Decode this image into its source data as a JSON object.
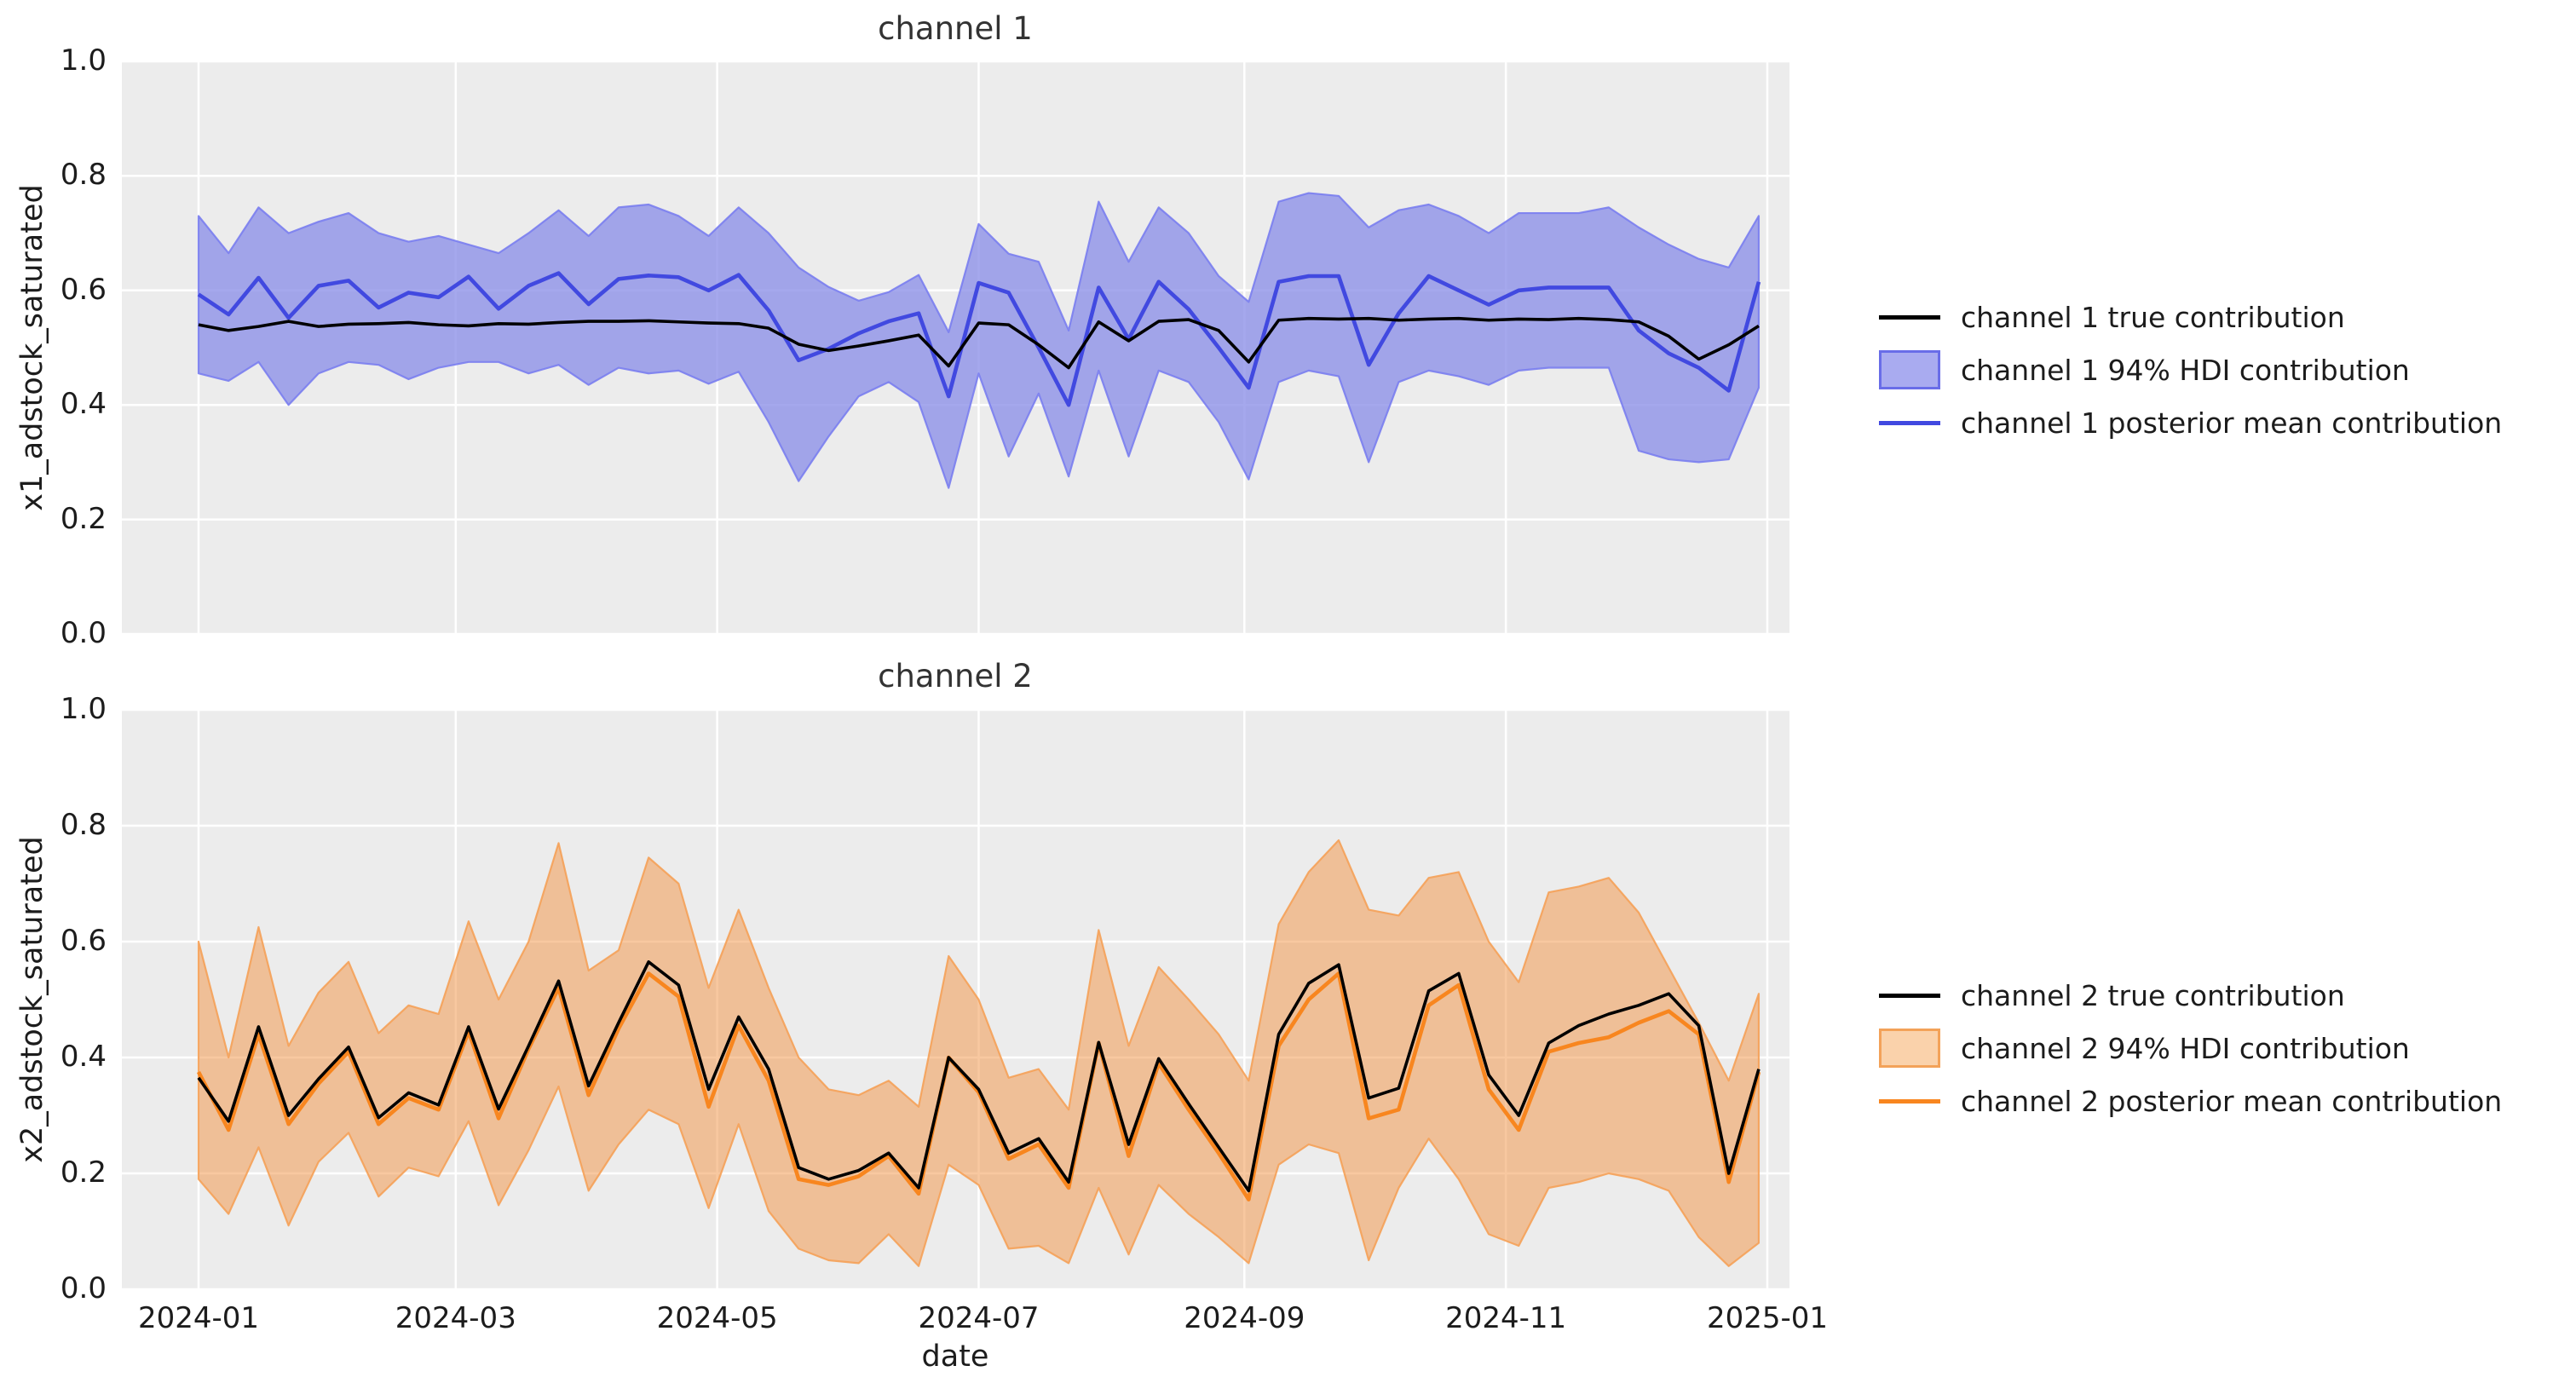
{
  "figure": {
    "axes_background": "#ececec",
    "grid_color": "#ffffff",
    "text_color": "#1c1c1c",
    "title_color": "#333333"
  },
  "chart_data": [
    {
      "type": "line",
      "title": "channel 1",
      "ylabel": "x1_adstock_saturated",
      "xlabel": "",
      "ylim": [
        0.0,
        1.0
      ],
      "grid": true,
      "yticks": [
        0.0,
        0.2,
        0.4,
        0.6,
        0.8,
        1.0
      ],
      "xticks": [
        "2024-01",
        "2024-03",
        "2024-05",
        "2024-07",
        "2024-09",
        "2024-11",
        "2025-01"
      ],
      "x": {
        "start_date": "2024-01-01",
        "step_days": 7,
        "n_points": 53
      },
      "legend_position": "right",
      "legend": [
        {
          "label": "channel 1 true contribution",
          "type": "line",
          "color": "#000000"
        },
        {
          "label": "channel 1 94% HDI contribution",
          "type": "patch",
          "fill": "#a9abf0",
          "edge": "#696de8"
        },
        {
          "label": "channel 1 posterior mean contribution",
          "type": "line",
          "color": "#4149e0"
        }
      ],
      "colors": {
        "true_line": "#000000",
        "mean_line": "#4149e0",
        "band_fill": "#8e92e8",
        "band_fill_opacity": 0.8,
        "band_edge": "#7a7eef"
      },
      "series": [
        {
          "name": "true",
          "values": [
            0.54,
            0.53,
            0.537,
            0.546,
            0.537,
            0.541,
            0.542,
            0.544,
            0.54,
            0.538,
            0.542,
            0.541,
            0.544,
            0.546,
            0.546,
            0.547,
            0.545,
            0.543,
            0.542,
            0.534,
            0.506,
            0.495,
            0.503,
            0.512,
            0.522,
            0.468,
            0.543,
            0.54,
            0.505,
            0.465,
            0.545,
            0.512,
            0.546,
            0.549,
            0.53,
            0.475,
            0.548,
            0.551,
            0.55,
            0.551,
            0.548,
            0.55,
            0.551,
            0.548,
            0.55,
            0.549,
            0.551,
            0.549,
            0.545,
            0.52,
            0.48,
            0.505,
            0.538
          ]
        },
        {
          "name": "posterior_mean",
          "values": [
            0.593,
            0.558,
            0.622,
            0.552,
            0.608,
            0.617,
            0.57,
            0.596,
            0.588,
            0.624,
            0.568,
            0.608,
            0.63,
            0.576,
            0.62,
            0.626,
            0.623,
            0.6,
            0.627,
            0.565,
            0.478,
            0.498,
            0.525,
            0.546,
            0.56,
            0.415,
            0.613,
            0.596,
            0.5,
            0.4,
            0.605,
            0.515,
            0.615,
            0.567,
            0.5,
            0.43,
            0.615,
            0.625,
            0.625,
            0.47,
            0.56,
            0.625,
            0.6,
            0.575,
            0.6,
            0.605,
            0.605,
            0.605,
            0.53,
            0.49,
            0.465,
            0.425,
            0.615
          ]
        },
        {
          "name": "hdi_lower",
          "values": [
            0.455,
            0.442,
            0.475,
            0.4,
            0.455,
            0.475,
            0.47,
            0.445,
            0.465,
            0.475,
            0.475,
            0.455,
            0.47,
            0.435,
            0.465,
            0.455,
            0.46,
            0.437,
            0.458,
            0.37,
            0.267,
            0.345,
            0.415,
            0.44,
            0.405,
            0.255,
            0.455,
            0.31,
            0.42,
            0.275,
            0.46,
            0.31,
            0.46,
            0.44,
            0.37,
            0.27,
            0.44,
            0.46,
            0.45,
            0.3,
            0.44,
            0.46,
            0.45,
            0.435,
            0.46,
            0.465,
            0.465,
            0.465,
            0.32,
            0.305,
            0.3,
            0.305,
            0.43
          ]
        },
        {
          "name": "hdi_upper",
          "values": [
            0.73,
            0.665,
            0.745,
            0.7,
            0.72,
            0.735,
            0.7,
            0.685,
            0.695,
            0.68,
            0.665,
            0.7,
            0.74,
            0.695,
            0.745,
            0.75,
            0.73,
            0.695,
            0.745,
            0.7,
            0.64,
            0.606,
            0.582,
            0.597,
            0.627,
            0.527,
            0.716,
            0.664,
            0.65,
            0.53,
            0.755,
            0.65,
            0.745,
            0.7,
            0.625,
            0.58,
            0.755,
            0.77,
            0.765,
            0.71,
            0.74,
            0.75,
            0.73,
            0.7,
            0.735,
            0.735,
            0.735,
            0.745,
            0.71,
            0.68,
            0.655,
            0.64,
            0.73
          ]
        }
      ]
    },
    {
      "type": "line",
      "title": "channel 2",
      "ylabel": "x2_adstock_saturated",
      "xlabel": "date",
      "ylim": [
        0.0,
        1.0
      ],
      "grid": true,
      "yticks": [
        0.0,
        0.2,
        0.4,
        0.6,
        0.8,
        1.0
      ],
      "xticks": [
        "2024-01",
        "2024-03",
        "2024-05",
        "2024-07",
        "2024-09",
        "2024-11",
        "2025-01"
      ],
      "x": {
        "start_date": "2024-01-01",
        "step_days": 7,
        "n_points": 53
      },
      "legend_position": "right",
      "legend": [
        {
          "label": "channel 2 true contribution",
          "type": "line",
          "color": "#000000"
        },
        {
          "label": "channel 2 94% HDI contribution",
          "type": "patch",
          "fill": "#fad2ab",
          "edge": "#f3a259"
        },
        {
          "label": "channel 2 posterior mean contribution",
          "type": "line",
          "color": "#f8861f"
        }
      ],
      "colors": {
        "true_line": "#000000",
        "mean_line": "#f8861f",
        "band_fill": "#f29242",
        "band_fill_opacity": 0.5,
        "band_edge": "#f5a158"
      },
      "series": [
        {
          "name": "true",
          "values": [
            0.365,
            0.29,
            0.453,
            0.3,
            0.363,
            0.418,
            0.296,
            0.339,
            0.318,
            0.453,
            0.311,
            0.42,
            0.532,
            0.351,
            0.46,
            0.565,
            0.525,
            0.345,
            0.47,
            0.38,
            0.21,
            0.19,
            0.205,
            0.235,
            0.175,
            0.4,
            0.345,
            0.235,
            0.26,
            0.185,
            0.426,
            0.25,
            0.398,
            0.32,
            0.245,
            0.17,
            0.44,
            0.528,
            0.56,
            0.33,
            0.347,
            0.515,
            0.545,
            0.37,
            0.3,
            0.425,
            0.455,
            0.475,
            0.49,
            0.51,
            0.455,
            0.2,
            0.38
          ]
        },
        {
          "name": "posterior_mean",
          "values": [
            0.375,
            0.275,
            0.44,
            0.285,
            0.355,
            0.41,
            0.285,
            0.33,
            0.31,
            0.445,
            0.295,
            0.415,
            0.52,
            0.335,
            0.45,
            0.545,
            0.505,
            0.315,
            0.455,
            0.36,
            0.19,
            0.18,
            0.195,
            0.23,
            0.165,
            0.4,
            0.34,
            0.225,
            0.25,
            0.175,
            0.425,
            0.23,
            0.39,
            0.31,
            0.235,
            0.155,
            0.42,
            0.5,
            0.545,
            0.295,
            0.31,
            0.49,
            0.525,
            0.345,
            0.275,
            0.41,
            0.425,
            0.435,
            0.46,
            0.48,
            0.44,
            0.185,
            0.375
          ]
        },
        {
          "name": "hdi_lower",
          "values": [
            0.19,
            0.13,
            0.245,
            0.11,
            0.22,
            0.27,
            0.16,
            0.21,
            0.195,
            0.29,
            0.145,
            0.24,
            0.35,
            0.17,
            0.25,
            0.31,
            0.285,
            0.14,
            0.285,
            0.135,
            0.07,
            0.05,
            0.045,
            0.095,
            0.04,
            0.215,
            0.18,
            0.07,
            0.075,
            0.045,
            0.175,
            0.06,
            0.18,
            0.13,
            0.09,
            0.045,
            0.215,
            0.25,
            0.235,
            0.05,
            0.175,
            0.26,
            0.19,
            0.095,
            0.075,
            0.175,
            0.185,
            0.2,
            0.19,
            0.17,
            0.09,
            0.04,
            0.08
          ]
        },
        {
          "name": "hdi_upper",
          "values": [
            0.6,
            0.4,
            0.625,
            0.42,
            0.512,
            0.565,
            0.442,
            0.49,
            0.475,
            0.635,
            0.5,
            0.6,
            0.77,
            0.55,
            0.585,
            0.745,
            0.7,
            0.52,
            0.655,
            0.52,
            0.4,
            0.345,
            0.335,
            0.36,
            0.315,
            0.575,
            0.5,
            0.365,
            0.38,
            0.31,
            0.62,
            0.42,
            0.556,
            0.5,
            0.44,
            0.36,
            0.63,
            0.72,
            0.775,
            0.655,
            0.645,
            0.71,
            0.72,
            0.6,
            0.53,
            0.685,
            0.695,
            0.71,
            0.65,
            0.555,
            0.46,
            0.36,
            0.51
          ]
        }
      ]
    }
  ]
}
